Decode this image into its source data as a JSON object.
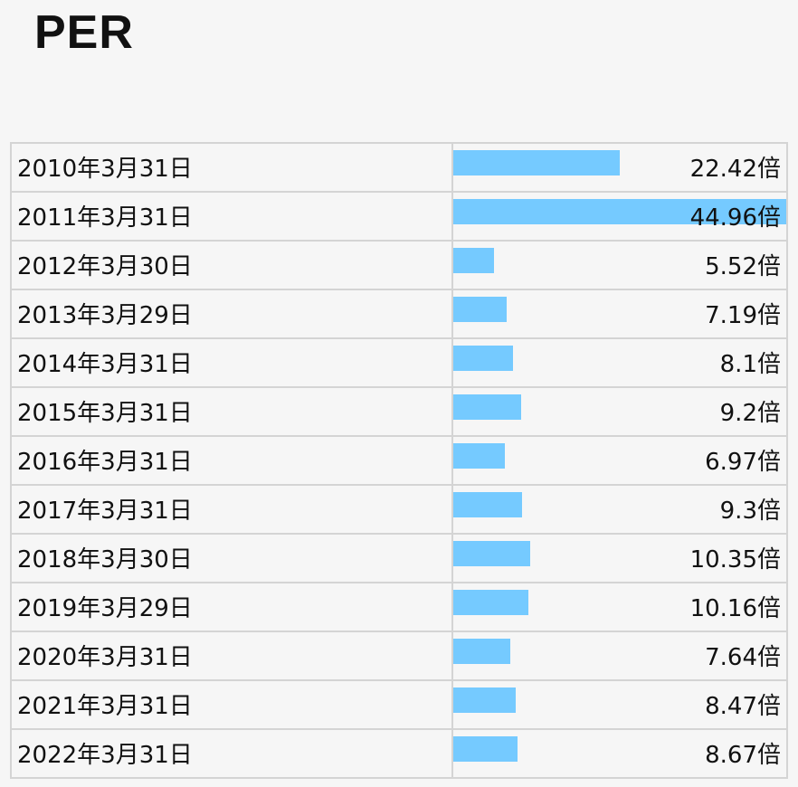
{
  "title": "PER",
  "colors": {
    "bar": "#75caff",
    "background": "#f6f6f6",
    "grid": "#d4d4d4"
  },
  "chart_data": {
    "type": "bar",
    "orientation": "horizontal",
    "value_suffix": "倍",
    "categories": [
      "2010年3月31日",
      "2011年3月31日",
      "2012年3月30日",
      "2013年3月29日",
      "2014年3月31日",
      "2015年3月31日",
      "2016年3月31日",
      "2017年3月31日",
      "2018年3月30日",
      "2019年3月29日",
      "2020年3月31日",
      "2021年3月31日",
      "2022年3月31日"
    ],
    "values": [
      22.42,
      44.96,
      5.52,
      7.19,
      8.1,
      9.2,
      6.97,
      9.3,
      10.35,
      10.16,
      7.64,
      8.47,
      8.67
    ],
    "value_labels": [
      "22.42倍",
      "44.96倍",
      "5.52倍",
      "7.19倍",
      "8.1倍",
      "9.2倍",
      "6.97倍",
      "9.3倍",
      "10.35倍",
      "10.16倍",
      "7.64倍",
      "8.47倍",
      "8.67倍"
    ]
  }
}
